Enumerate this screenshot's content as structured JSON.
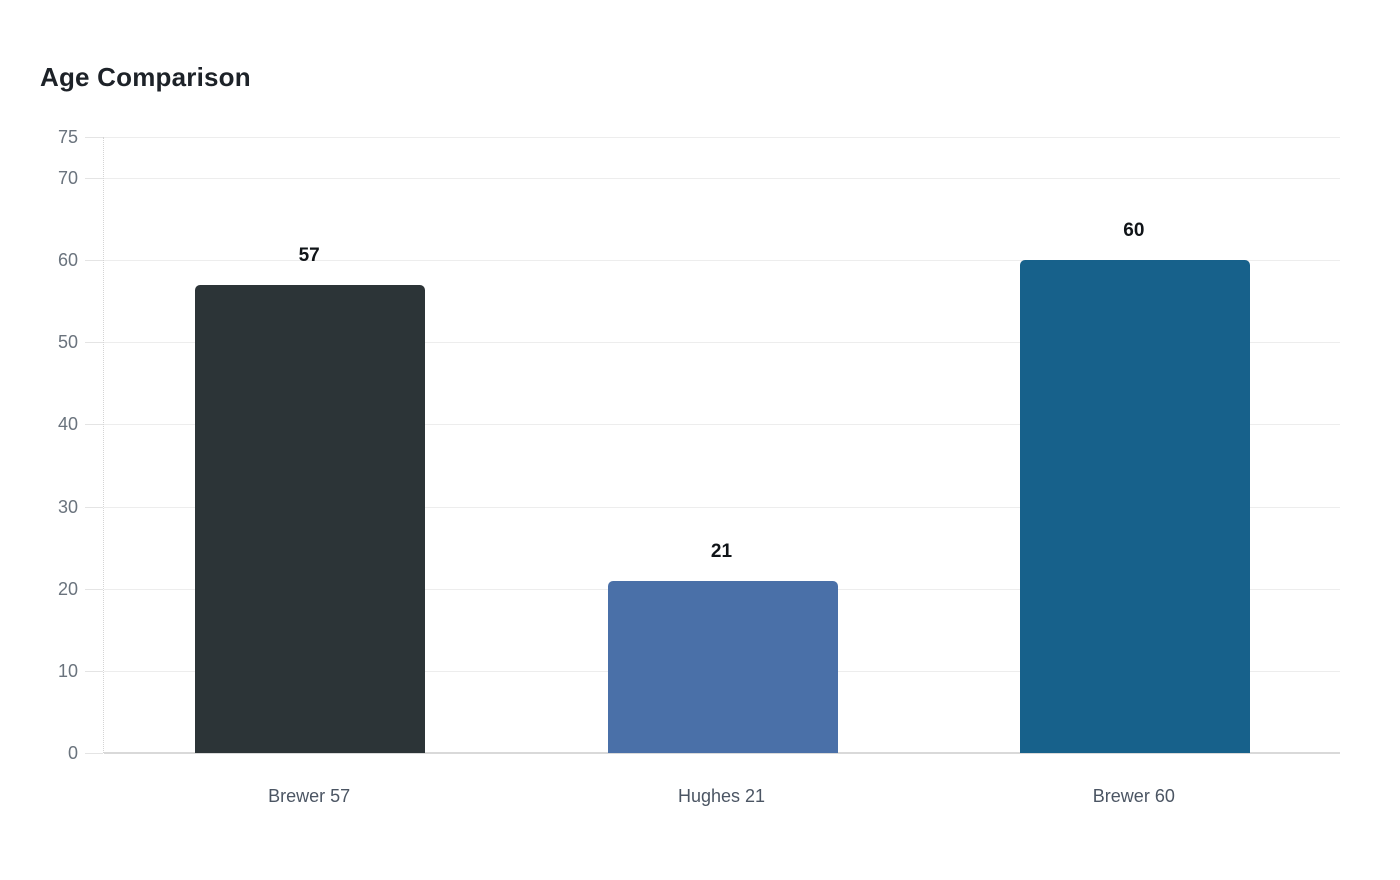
{
  "chart_data": {
    "type": "bar",
    "title": "Age Comparison",
    "categories": [
      "Brewer 57",
      "Hughes 21",
      "Brewer 60"
    ],
    "values": [
      57,
      21,
      60
    ],
    "value_labels": [
      "57",
      "21",
      "60"
    ],
    "bar_colors": [
      "#2c3437",
      "#4a70a8",
      "#17618b"
    ],
    "yticks": [
      0,
      10,
      20,
      30,
      40,
      50,
      60,
      70,
      75
    ],
    "ylim": [
      0,
      75
    ],
    "xlabel": "",
    "ylabel": "",
    "grid": true,
    "legend": false,
    "colors": {
      "background": "#ffffff",
      "title_text": "#1d2228",
      "tick_label": "#6a737d",
      "category_label": "#4b5563",
      "value_label": "#101418",
      "gridline": "#ededed",
      "baseline": "#d9d9d9",
      "axis_dotted": "#d4d4d4"
    }
  }
}
